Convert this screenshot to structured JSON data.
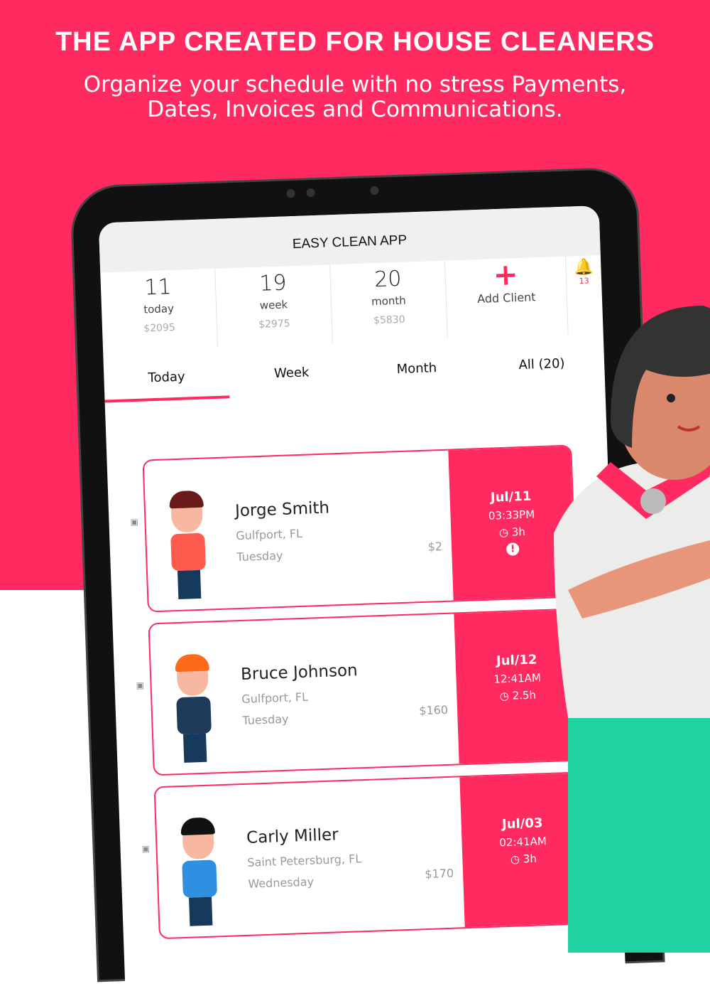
{
  "headline": "THE APP CREATED FOR HOUSE CLEANERS",
  "subheadline_line1": "Organize your schedule with no stress Payments,",
  "subheadline_line2": "Dates, Invoices and Communications.",
  "app": {
    "title": "EASY CLEAN APP",
    "stats": [
      {
        "count": "11",
        "label": "today",
        "amount": "$2095"
      },
      {
        "count": "19",
        "label": "week",
        "amount": "$2975"
      },
      {
        "count": "20",
        "label": "month",
        "amount": "$5830"
      }
    ],
    "add_client": "Add Client",
    "notifications": "13",
    "tabs": [
      {
        "label": "Today",
        "active": true
      },
      {
        "label": "Week"
      },
      {
        "label": "Month"
      },
      {
        "label": "All (20)"
      }
    ],
    "appointments": [
      {
        "name": "Jorge Smith",
        "city": "Gulfport, FL",
        "day": "Tuesday",
        "price": "$2",
        "date": "Jul/11",
        "time": "03:33PM",
        "duration": "3h",
        "warning": true,
        "hair": "#6b1a1a",
        "shirt": "#ff5a4e"
      },
      {
        "name": "Bruce Johnson",
        "city": "Gulfport, FL",
        "day": "Tuesday",
        "price": "$160",
        "date": "Jul/12",
        "time": "12:41AM",
        "duration": "2.5h",
        "warning": false,
        "hair": "#ff6a1a",
        "shirt": "#1f3b5a"
      },
      {
        "name": "Carly Miller",
        "city": "Saint Petersburg, FL",
        "day": "Wednesday",
        "price": "$170",
        "date": "Jul/03",
        "time": "02:41AM",
        "duration": "3h",
        "warning": false,
        "hair": "#111",
        "shirt": "#2f8fe0"
      }
    ]
  },
  "colors": {
    "accent": "#ff2a5f",
    "mint": "#1fd3a0"
  }
}
